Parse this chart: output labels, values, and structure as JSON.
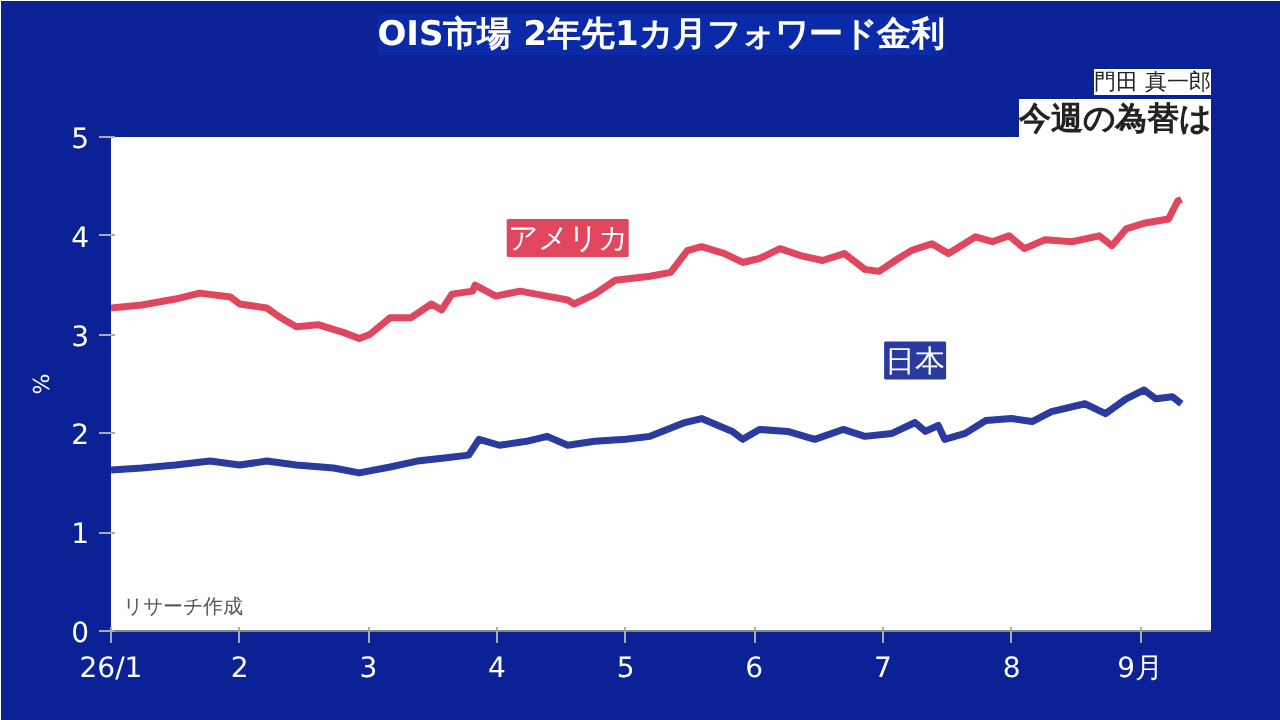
{
  "chart_data": {
    "type": "line",
    "title": "OIS市場 2年先1カ月フォワード金利",
    "ylabel": "%",
    "annotations": [
      "今週の為替は",
      "門田 真一郎",
      "リサーチ作成"
    ],
    "xlim": [
      1,
      9.55
    ],
    "xticks": [
      {
        "value": 1,
        "label": "26/1"
      },
      2,
      3,
      4,
      5,
      6,
      7,
      8,
      {
        "value": 9,
        "label": "9月"
      }
    ],
    "ylim": [
      0,
      5
    ],
    "yticks": [
      0,
      1,
      2,
      3,
      4,
      5
    ],
    "grid": false,
    "legend": false,
    "marker": "none",
    "line_style": "solid",
    "series": [
      {
        "name": "アメリカ",
        "color": "#e0475f",
        "x": [
          1.0,
          1.24,
          1.5,
          1.69,
          1.93,
          2.0,
          2.21,
          2.32,
          2.44,
          2.61,
          2.81,
          2.93,
          3.01,
          3.17,
          3.33,
          3.49,
          3.57,
          3.65,
          3.81,
          3.83,
          3.99,
          4.18,
          4.39,
          4.55,
          4.6,
          4.76,
          4.92,
          5.19,
          5.35,
          5.48,
          5.59,
          5.77,
          5.91,
          6.04,
          6.2,
          6.36,
          6.53,
          6.7,
          6.86,
          6.97,
          7.12,
          7.22,
          7.38,
          7.51,
          7.72,
          7.85,
          7.98,
          8.1,
          8.26,
          8.47,
          8.68,
          8.78,
          8.89,
          9.04,
          9.22,
          9.29,
          9.32
        ],
        "values": [
          3.27,
          3.3,
          3.36,
          3.42,
          3.38,
          3.31,
          3.27,
          3.17,
          3.08,
          3.1,
          3.02,
          2.96,
          3.0,
          3.17,
          3.17,
          3.31,
          3.25,
          3.41,
          3.44,
          3.5,
          3.39,
          3.44,
          3.39,
          3.35,
          3.31,
          3.41,
          3.55,
          3.59,
          3.63,
          3.85,
          3.89,
          3.82,
          3.73,
          3.77,
          3.87,
          3.8,
          3.75,
          3.82,
          3.66,
          3.64,
          3.77,
          3.85,
          3.92,
          3.82,
          3.99,
          3.94,
          4.0,
          3.87,
          3.96,
          3.94,
          4.0,
          3.9,
          4.07,
          4.13,
          4.17,
          4.35,
          4.37
        ]
      },
      {
        "name": "日本",
        "color": "#2b3a9e",
        "x": [
          1.0,
          1.24,
          1.5,
          1.77,
          2.0,
          2.21,
          2.44,
          2.73,
          2.93,
          3.17,
          3.38,
          3.59,
          3.78,
          3.86,
          4.02,
          4.23,
          4.39,
          4.55,
          4.76,
          5.0,
          5.19,
          5.46,
          5.59,
          5.83,
          5.91,
          6.04,
          6.26,
          6.47,
          6.69,
          6.86,
          7.07,
          7.25,
          7.33,
          7.43,
          7.48,
          7.64,
          7.8,
          8.0,
          8.16,
          8.31,
          8.57,
          8.73,
          8.89,
          9.03,
          9.12,
          9.25,
          9.32
        ],
        "values": [
          1.63,
          1.65,
          1.68,
          1.72,
          1.68,
          1.72,
          1.68,
          1.65,
          1.6,
          1.66,
          1.72,
          1.75,
          1.78,
          1.94,
          1.88,
          1.92,
          1.97,
          1.88,
          1.92,
          1.94,
          1.97,
          2.11,
          2.15,
          2.02,
          1.94,
          2.04,
          2.02,
          1.94,
          2.04,
          1.97,
          2.0,
          2.11,
          2.02,
          2.08,
          1.94,
          2.0,
          2.13,
          2.15,
          2.12,
          2.22,
          2.3,
          2.2,
          2.35,
          2.44,
          2.35,
          2.37,
          2.3
        ]
      }
    ]
  }
}
